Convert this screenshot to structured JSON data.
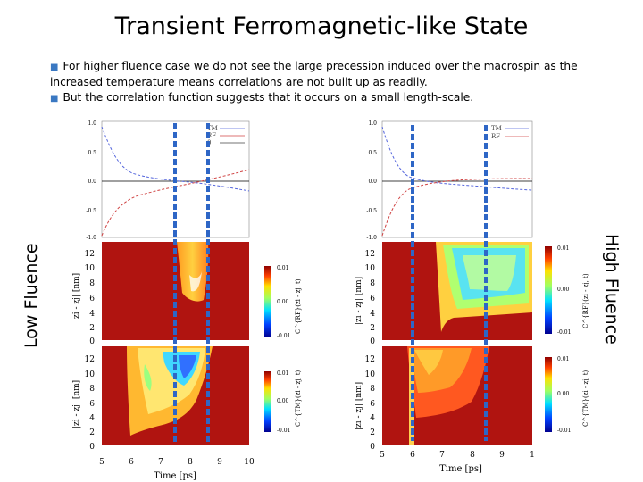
{
  "slide": {
    "title": "Transient Ferromagnetic-like State",
    "bullets": [
      "For higher fluence case we do not see the large precession induced over the macrospin as the increased temperature means correlations are not built up as readily.",
      "But the correlation function suggests that it occurs on a small length-scale."
    ],
    "label_low": "Low Fluence",
    "label_high": "High Fluence"
  },
  "colors": {
    "bullet": "#3a78c2",
    "tm": "#5566dd",
    "rf": "#d04444",
    "heat_bg": "#b01410",
    "marker": "#2e66c6"
  },
  "left_panel": {
    "line_yticks": [
      "1.0",
      "0.5",
      "0.0",
      "-0.5",
      "-1.0"
    ],
    "legend": [
      "TM",
      "RF",
      "0"
    ],
    "heat_yticks": [
      "12",
      "10",
      "8",
      "6",
      "4",
      "2",
      "0"
    ],
    "ylabel": "|zi - zj| [nm]",
    "ylabel_short": "|zi - zj| [nm]",
    "cb_top_ticks": [
      "0.01",
      "0.00",
      "-0.01"
    ],
    "cb_bot_ticks": [
      "0.01",
      "0.00",
      "-0.01"
    ],
    "cb_top_label": "C^{RF}(zi - zj, t)",
    "cb_bot_label": "C^{TM}(zi - zj, t)",
    "xticks": [
      "5",
      "6",
      "7",
      "8",
      "9",
      "10"
    ],
    "xlabel": "Time [ps]"
  },
  "right_panel": {
    "line_yticks": [
      "1.0",
      "0.5",
      "0.0",
      "-0.5",
      "-1.0"
    ],
    "legend": [
      "TM",
      "RF"
    ],
    "heat_yticks": [
      "12",
      "10",
      "8",
      "6",
      "4",
      "2",
      "0"
    ],
    "ylabel": "|zi - zj| [nm]",
    "cb_top_ticks": [
      "0.01",
      "0.00",
      "-0.01"
    ],
    "cb_bot_ticks": [
      "0.01",
      "0.00",
      "-0.01"
    ],
    "cb_top_label": "C^{RF}(zi - zj, t)",
    "cb_bot_label": "C^{TM}(zi - zj, t)",
    "xticks": [
      "5",
      "6",
      "7",
      "8",
      "9",
      "1"
    ],
    "xlabel": "Time [ps]"
  }
}
